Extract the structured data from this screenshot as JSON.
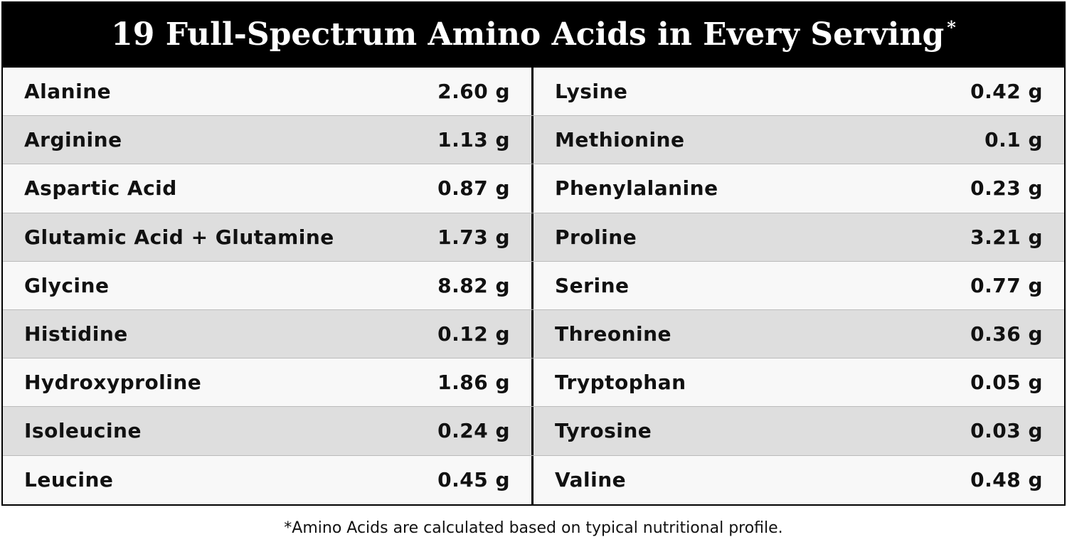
{
  "header": {
    "title": "19 Full-Spectrum Amino Acids in Every Serving",
    "mark": "*"
  },
  "table": {
    "rows": [
      [
        "Alanine",
        "2.60 g",
        "Lysine",
        "0.42 g"
      ],
      [
        "Arginine",
        "1.13 g",
        "Methionine",
        "0.1 g"
      ],
      [
        "Aspartic Acid",
        "0.87 g",
        "Phenylalanine",
        "0.23 g"
      ],
      [
        "Glutamic Acid + Glutamine",
        "1.73 g",
        "Proline",
        "3.21 g"
      ],
      [
        "Glycine",
        "8.82 g",
        "Serine",
        "0.77 g"
      ],
      [
        "Histidine",
        "0.12 g",
        "Threonine",
        "0.36 g"
      ],
      [
        "Hydroxyproline",
        "1.86 g",
        "Tryptophan",
        "0.05 g"
      ],
      [
        "Isoleucine",
        "0.24 g",
        "Tyrosine",
        "0.03 g"
      ],
      [
        "Leucine",
        "0.45 g",
        "Valine",
        "0.48 g"
      ]
    ]
  },
  "footnote": "*Amino Acids are calculated based on typical nutritional profile."
}
